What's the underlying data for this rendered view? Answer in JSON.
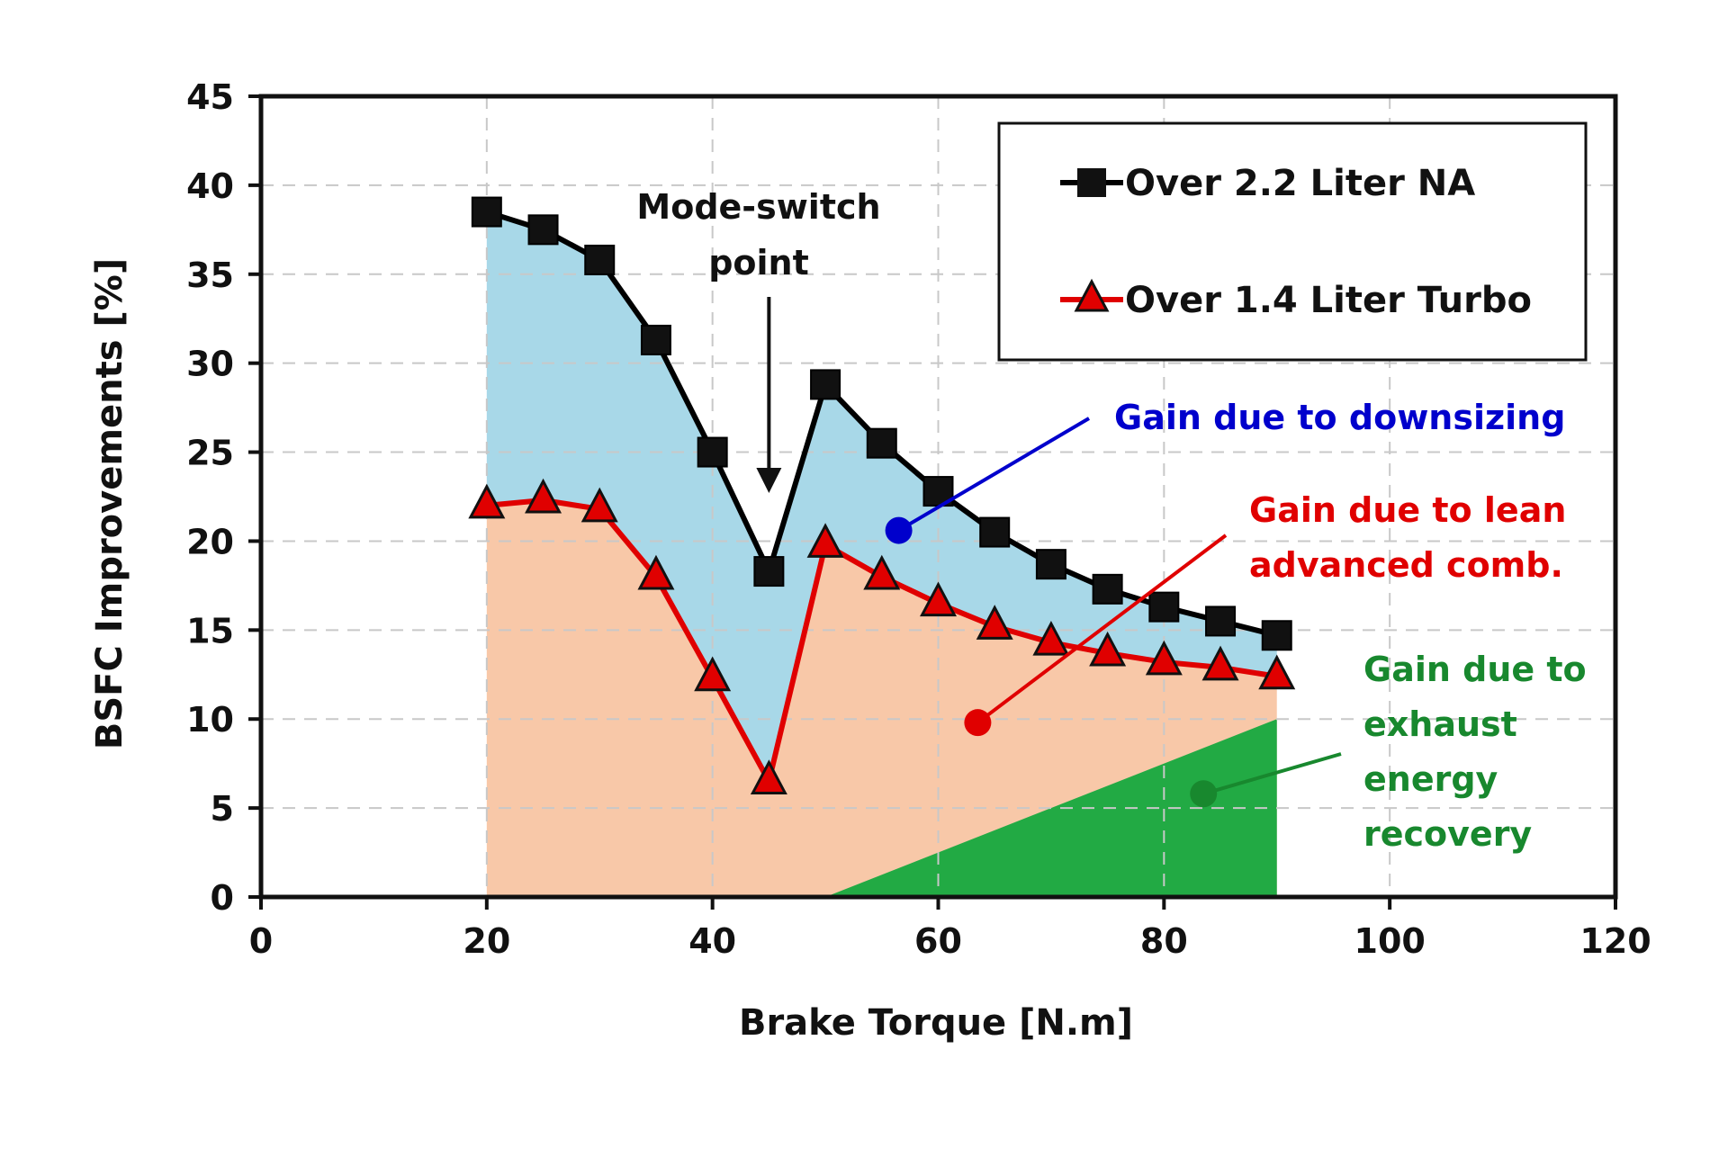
{
  "chart_data": {
    "type": "line",
    "xlabel": "Brake Torque [N.m]",
    "ylabel": "BSFC Improvements [%]",
    "xlim": [
      0,
      120
    ],
    "ylim": [
      0,
      45
    ],
    "x_ticks": [
      0,
      20,
      40,
      60,
      80,
      100,
      120
    ],
    "y_ticks": [
      0,
      5,
      10,
      15,
      20,
      25,
      30,
      35,
      40,
      45
    ],
    "grid": true,
    "legend_position": "top-right",
    "series": [
      {
        "name": "Over 2.2 Liter NA",
        "color": "#000000",
        "marker": "square",
        "x": [
          20,
          25,
          30,
          35,
          40,
          45,
          50,
          55,
          60,
          65,
          70,
          75,
          80,
          85,
          90
        ],
        "values": [
          38.5,
          37.5,
          35.8,
          31.3,
          25.0,
          18.3,
          28.8,
          25.5,
          22.8,
          20.5,
          18.7,
          17.3,
          16.3,
          15.5,
          14.7
        ]
      },
      {
        "name": "Over 1.4 Liter Turbo",
        "color": "#e00000",
        "marker": "triangle",
        "x": [
          20,
          25,
          30,
          35,
          40,
          45,
          50,
          55,
          60,
          65,
          70,
          75,
          80,
          85,
          90
        ],
        "values": [
          22.0,
          22.3,
          21.8,
          18.0,
          12.3,
          6.5,
          19.8,
          18.0,
          16.5,
          15.2,
          14.3,
          13.7,
          13.2,
          12.9,
          12.4
        ]
      }
    ],
    "exhaust_region": {
      "x": [
        50,
        90
      ],
      "values": [
        0,
        10
      ],
      "color": "#22aa44"
    },
    "fill_colors": {
      "downsizing": "#a8d8e8",
      "lean": "#f8c8a8",
      "exhaust": "#22aa44"
    },
    "annotations": {
      "mode_switch": {
        "lines": [
          "Mode-switch",
          "point"
        ],
        "x": 45
      },
      "downsizing": {
        "lines": [
          "Gain due to downsizing"
        ],
        "color": "#0000cc",
        "point": [
          56.5,
          20.6
        ]
      },
      "lean": {
        "lines": [
          "Gain due to lean",
          "advanced comb."
        ],
        "color": "#e00000",
        "point": [
          63.5,
          9.8
        ]
      },
      "exhaust": {
        "lines": [
          "Gain due to",
          "exhaust",
          "energy",
          "recovery"
        ],
        "color": "#18882e",
        "point": [
          83.5,
          5.8
        ]
      }
    }
  }
}
